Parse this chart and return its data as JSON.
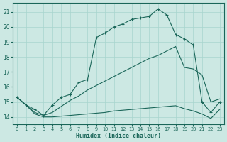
{
  "xlabel": "Humidex (Indice chaleur)",
  "xlim": [
    -0.5,
    23.5
  ],
  "ylim": [
    13.5,
    21.6
  ],
  "yticks": [
    14,
    15,
    16,
    17,
    18,
    19,
    20,
    21
  ],
  "xticks": [
    0,
    1,
    2,
    3,
    4,
    5,
    6,
    7,
    8,
    9,
    10,
    11,
    12,
    13,
    14,
    15,
    16,
    17,
    18,
    19,
    20,
    21,
    22,
    23
  ],
  "bg_color": "#cce8e3",
  "line_color": "#1a6659",
  "grid_color": "#a8d5ce",
  "main_line": [
    15.3,
    14.8,
    14.5,
    14.1,
    14.8,
    15.3,
    15.5,
    16.3,
    16.5,
    19.3,
    19.6,
    20.0,
    20.2,
    20.5,
    20.6,
    20.7,
    21.2,
    20.8,
    19.5,
    19.2,
    18.8,
    15.0,
    14.3,
    15.0
  ],
  "upper_line": [
    15.3,
    14.8,
    14.3,
    14.1,
    14.3,
    14.7,
    15.1,
    15.4,
    15.8,
    16.1,
    16.4,
    16.7,
    17.0,
    17.3,
    17.6,
    17.9,
    18.1,
    18.4,
    18.7,
    17.3,
    17.2,
    16.8,
    15.0,
    15.2
  ],
  "lower_line": [
    15.3,
    14.8,
    14.2,
    14.0,
    14.0,
    14.05,
    14.1,
    14.15,
    14.2,
    14.25,
    14.3,
    14.4,
    14.45,
    14.5,
    14.55,
    14.6,
    14.65,
    14.7,
    14.75,
    14.55,
    14.4,
    14.2,
    13.9,
    14.5
  ]
}
